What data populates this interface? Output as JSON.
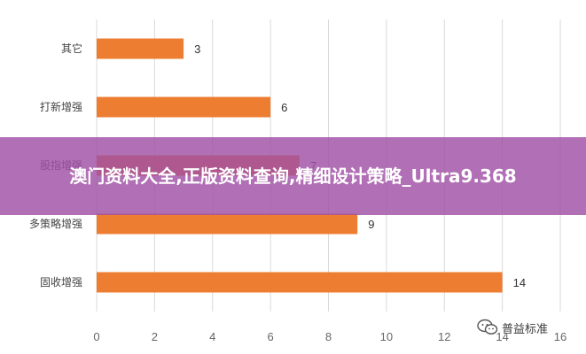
{
  "chart_data": {
    "type": "bar",
    "orientation": "horizontal",
    "categories": [
      "其它",
      "打新增强",
      "股指增强",
      "多策略增强",
      "固收增强"
    ],
    "values": [
      3,
      6,
      7,
      9,
      14
    ],
    "data_labels": [
      "3",
      "6",
      "7",
      "9",
      "14"
    ],
    "xlim": [
      0,
      16
    ],
    "x_ticks": [
      "0",
      "2",
      "4",
      "6",
      "8",
      "10",
      "12",
      "14",
      "16"
    ],
    "grid": "vertical",
    "bar_color": "#ED7D31",
    "title": "",
    "xlabel": "",
    "ylabel": ""
  },
  "overlay": {
    "banner_text": "澳门资料大全,正版资料查询,精细设计策略_Ultra9.368",
    "banner_color": "#A050A5"
  },
  "watermark": {
    "text": "普益标准",
    "icon": "wechat-icon"
  }
}
